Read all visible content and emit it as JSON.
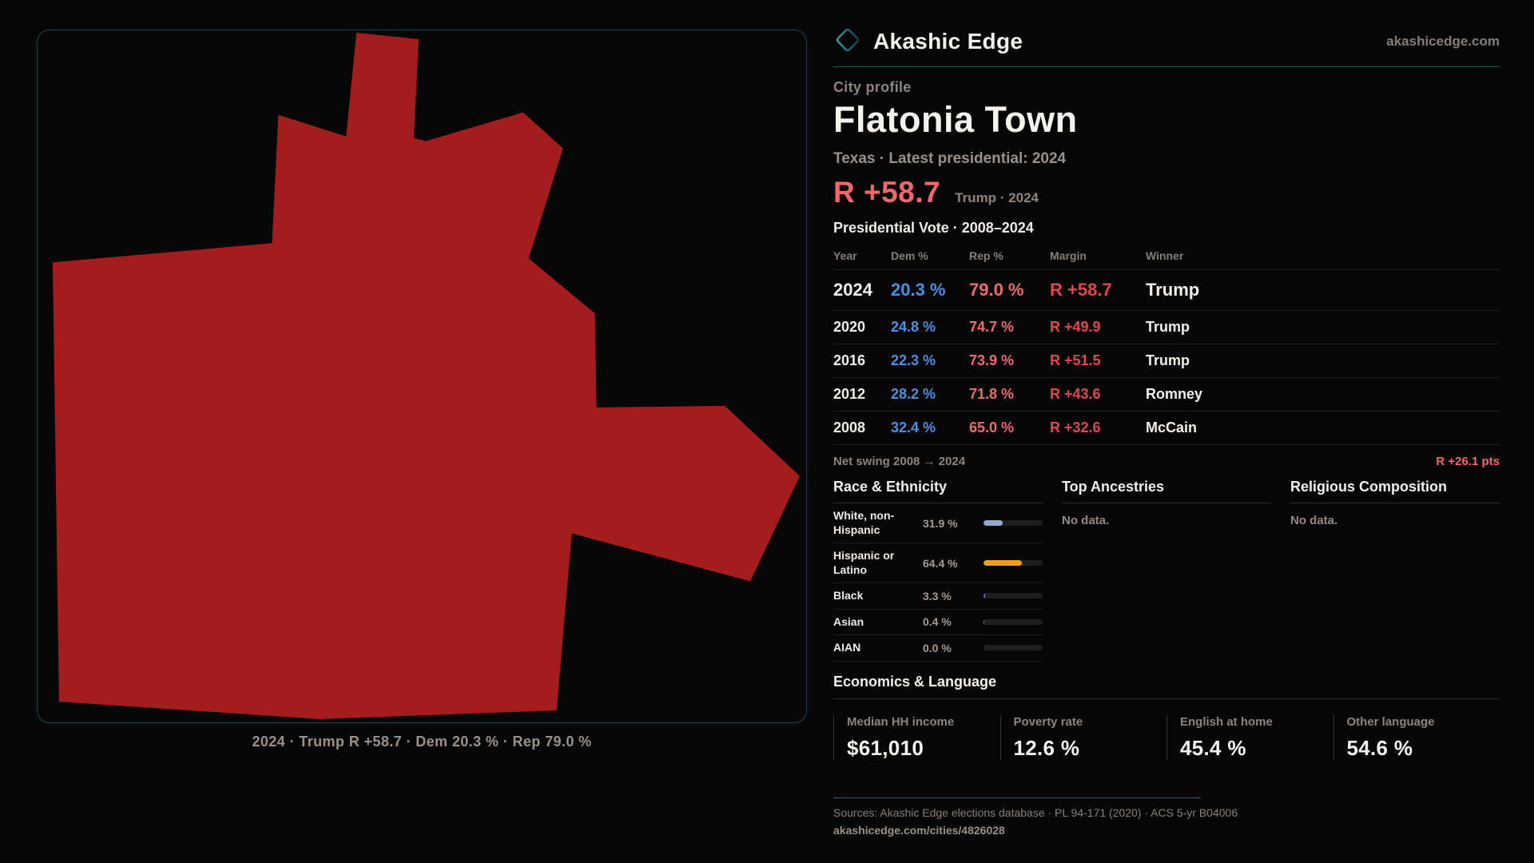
{
  "colors": {
    "headline_red": "#f2676c",
    "dem_blue": "#4a90e2",
    "rep_red": "#f0696e",
    "margin_red": "#e4464f",
    "map_fill": "#a41d1d",
    "accent_teal": "#2e7486"
  },
  "brand": {
    "name": "Akashic Edge",
    "domain": "akashicedge.com"
  },
  "profile": {
    "kicker": "City profile",
    "title": "Flatonia Town",
    "subtitle": "Texas · Latest presidential: 2024",
    "headline_margin": "R +58.7",
    "headline_context": "Trump · 2024",
    "table_title": "Presidential Vote · 2008–2024"
  },
  "map": {
    "caption": "2024 · Trump R +58.7 · Dem 20.3 % · Rep 79.0 %"
  },
  "election_table": {
    "columns": [
      "Year",
      "Dem %",
      "Rep %",
      "Margin",
      "Winner"
    ],
    "rows": [
      {
        "year": "2024",
        "dem": "20.3 %",
        "rep": "79.0 %",
        "margin": "R +58.7",
        "winner": "Trump"
      },
      {
        "year": "2020",
        "dem": "24.8 %",
        "rep": "74.7 %",
        "margin": "R +49.9",
        "winner": "Trump"
      },
      {
        "year": "2016",
        "dem": "22.3 %",
        "rep": "73.9 %",
        "margin": "R +51.5",
        "winner": "Trump"
      },
      {
        "year": "2012",
        "dem": "28.2 %",
        "rep": "71.8 %",
        "margin": "R +43.6",
        "winner": "Romney"
      },
      {
        "year": "2008",
        "dem": "32.4 %",
        "rep": "65.0 %",
        "margin": "R +32.6",
        "winner": "McCain"
      }
    ]
  },
  "net_swing": {
    "label": "Net swing 2008 → 2024",
    "value": "R +26.1 pts"
  },
  "race_ethnicity": {
    "heading": "Race & Ethnicity",
    "rows": [
      {
        "label": "White, non-Hispanic",
        "value": "31.9 %",
        "pct": 31.9,
        "color": "#93a9c9"
      },
      {
        "label": "Hispanic or Latino",
        "value": "64.4 %",
        "pct": 64.4,
        "color": "#e9a11b"
      },
      {
        "label": "Black",
        "value": "3.3 %",
        "pct": 3.3,
        "color": "#7e57e0"
      },
      {
        "label": "Asian",
        "value": "0.4 %",
        "pct": 0.4,
        "color": "#27c08e"
      },
      {
        "label": "AIAN",
        "value": "0.0 %",
        "pct": 0,
        "color": "#555555"
      }
    ]
  },
  "ancestries": {
    "heading": "Top Ancestries",
    "empty": "No data."
  },
  "religion": {
    "heading": "Religious Composition",
    "empty": "No data."
  },
  "economics": {
    "heading": "Economics & Language",
    "stats": [
      {
        "label": "Median HH income",
        "value": "$61,010"
      },
      {
        "label": "Poverty rate",
        "value": "12.6 %"
      },
      {
        "label": "English at home",
        "value": "45.4 %"
      },
      {
        "label": "Other language",
        "value": "54.6 %"
      }
    ]
  },
  "footer": {
    "sources": "Sources: Akashic Edge elections database · PL 94-171 (2020) · ACS 5-yr B04006",
    "permalink": "akashicedge.com/cities/4826028"
  }
}
